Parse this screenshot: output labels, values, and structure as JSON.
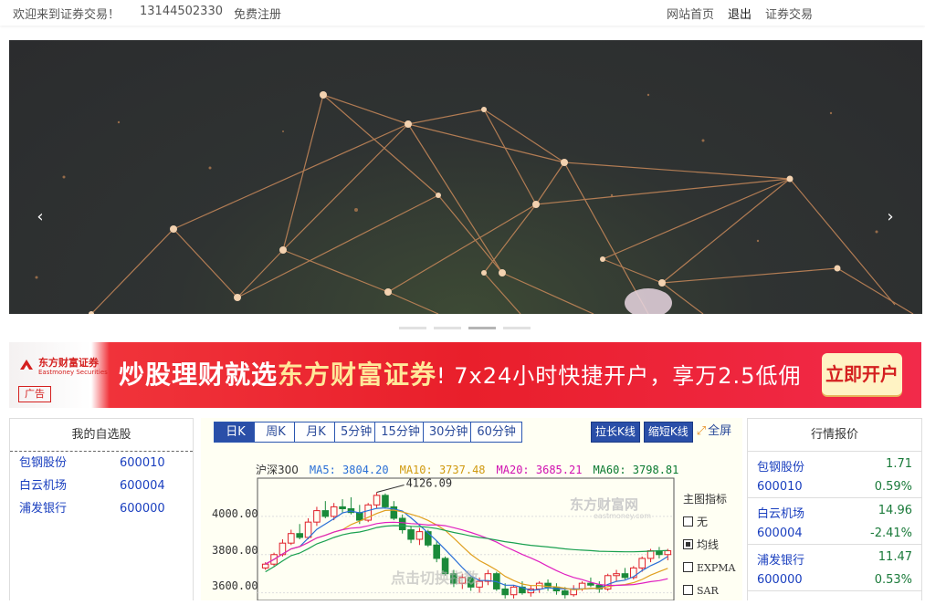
{
  "topbar": {
    "welcome": "欢迎来到证券交易！",
    "phone": "13144502330",
    "register": "免费注册",
    "home": "网站首页",
    "logout": "退出",
    "trade": "证券交易"
  },
  "carousel": {
    "prev_icon": "chevron-left-icon",
    "next_icon": "chevron-right-icon",
    "slide_count": 4,
    "active_slide": 3
  },
  "ad": {
    "brand": "东方财富证券",
    "brand_en": "Eastmoney Securities",
    "tag": "广告",
    "slogan_a": "炒股理财就选",
    "slogan_b": "东方财富证券",
    "slogan_c": "! 7x24小时快捷开户，享万2.5低佣",
    "cta": "立即开户",
    "colors": {
      "bg": "#e91f2b",
      "highlight": "#ffe89a",
      "cta_bg": "#fff3c4"
    }
  },
  "watchlist": {
    "title": "我的自选股",
    "items": [
      {
        "name": "包钢股份",
        "code": "600010"
      },
      {
        "name": "白云机场",
        "code": "600004"
      },
      {
        "name": "浦发银行",
        "code": "600000"
      }
    ]
  },
  "chart_panel": {
    "periods": [
      "日K",
      "周K",
      "月K"
    ],
    "intervals": [
      "5分钟",
      "15分钟",
      "30分钟",
      "60分钟"
    ],
    "active_period": "日K",
    "stretch": "拉长K线",
    "shrink": "缩短K线",
    "fullscreen": "全屏",
    "fullscreen_icon": "expand-icon",
    "index_name": "沪深300",
    "ma5": "MA5: 3804.20",
    "ma10": "MA10: 3737.48",
    "ma20": "MA20: 3685.21",
    "ma60": "MA60: 3798.81",
    "ma_colors": {
      "ma5": "#2a6fd6",
      "ma10": "#e0a020",
      "ma20": "#e020c0",
      "ma60": "#1aa050"
    },
    "peak_label": "4126.09",
    "watermark": "东方财富网",
    "watermark_en": "eastmoney.com",
    "overlay_hint": "点击切换指数",
    "indicator_title": "主图指标",
    "indicators": [
      {
        "label": "无",
        "checked": false
      },
      {
        "label": "均线",
        "checked": true
      },
      {
        "label": "EXPMA",
        "checked": false
      },
      {
        "label": "SAR",
        "checked": false
      }
    ]
  },
  "chart_data": {
    "type": "candlestick",
    "title": "沪深300",
    "y_ticks": [
      "4000.00",
      "3800.00",
      "3600.00"
    ],
    "ylim": [
      3560,
      4200
    ],
    "candles": [
      [
        3730,
        3760,
        3720,
        3750
      ],
      [
        3750,
        3810,
        3740,
        3800
      ],
      [
        3800,
        3880,
        3790,
        3860
      ],
      [
        3860,
        3930,
        3850,
        3910
      ],
      [
        3910,
        3960,
        3880,
        3890
      ],
      [
        3890,
        3990,
        3880,
        3970
      ],
      [
        3970,
        4050,
        3950,
        4030
      ],
      [
        4030,
        4080,
        3990,
        4000
      ],
      [
        4000,
        4070,
        3980,
        4050
      ],
      [
        4050,
        4090,
        4020,
        4040
      ],
      [
        4040,
        4100,
        4010,
        4020
      ],
      [
        4020,
        4060,
        3960,
        3980
      ],
      [
        3980,
        4070,
        3970,
        4060
      ],
      [
        4060,
        4126,
        4040,
        4110
      ],
      [
        4110,
        4120,
        4040,
        4050
      ],
      [
        4050,
        4080,
        3980,
        3990
      ],
      [
        3990,
        4010,
        3910,
        3930
      ],
      [
        3930,
        3950,
        3860,
        3880
      ],
      [
        3880,
        3940,
        3850,
        3920
      ],
      [
        3920,
        3930,
        3840,
        3850
      ],
      [
        3850,
        3870,
        3760,
        3780
      ],
      [
        3780,
        3790,
        3690,
        3700
      ],
      [
        3700,
        3720,
        3630,
        3650
      ],
      [
        3650,
        3700,
        3620,
        3680
      ],
      [
        3680,
        3690,
        3610,
        3630
      ],
      [
        3630,
        3680,
        3600,
        3660
      ],
      [
        3660,
        3720,
        3640,
        3700
      ],
      [
        3700,
        3710,
        3610,
        3620
      ],
      [
        3620,
        3650,
        3570,
        3590
      ],
      [
        3590,
        3640,
        3570,
        3630
      ],
      [
        3630,
        3660,
        3590,
        3600
      ],
      [
        3600,
        3640,
        3580,
        3620
      ],
      [
        3620,
        3660,
        3600,
        3650
      ],
      [
        3650,
        3670,
        3610,
        3630
      ],
      [
        3630,
        3650,
        3590,
        3610
      ],
      [
        3610,
        3630,
        3570,
        3590
      ],
      [
        3590,
        3640,
        3580,
        3620
      ],
      [
        3620,
        3660,
        3610,
        3650
      ],
      [
        3650,
        3680,
        3630,
        3640
      ],
      [
        3640,
        3660,
        3600,
        3620
      ],
      [
        3620,
        3700,
        3610,
        3690
      ],
      [
        3690,
        3720,
        3660,
        3700
      ],
      [
        3700,
        3730,
        3670,
        3680
      ],
      [
        3680,
        3740,
        3670,
        3730
      ],
      [
        3730,
        3790,
        3710,
        3780
      ],
      [
        3780,
        3830,
        3760,
        3820
      ],
      [
        3820,
        3840,
        3780,
        3800
      ],
      [
        3800,
        3830,
        3770,
        3820
      ]
    ]
  },
  "quotes": {
    "title": "行情报价",
    "items": [
      {
        "name": "包钢股份",
        "code": "600010",
        "price": "1.71",
        "change": "0.59%"
      },
      {
        "name": "白云机场",
        "code": "600004",
        "price": "14.96",
        "change": "-2.41%"
      },
      {
        "name": "浦发银行",
        "code": "600000",
        "price": "11.47",
        "change": "0.53%"
      }
    ]
  }
}
